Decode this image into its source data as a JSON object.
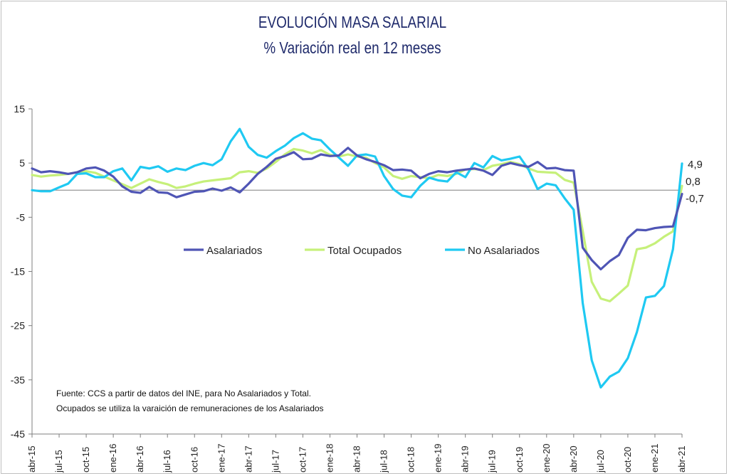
{
  "chart_data": {
    "type": "line",
    "title": "EVOLUCIÓN MASA SALARIAL",
    "subtitle": "% Variación real en 12 meses",
    "ylim": [
      -45,
      15
    ],
    "y_ticks": [
      "15",
      "5",
      "-5",
      "-15",
      "-25",
      "-35",
      "-45"
    ],
    "y_tick_values": [
      15,
      5,
      -5,
      -15,
      -25,
      -35,
      -45
    ],
    "x_tick_labels": [
      "abr-15",
      "jul-15",
      "oct-15",
      "ene-16",
      "abr-16",
      "jul-16",
      "oct-16",
      "ene-17",
      "abr-17",
      "jul-17",
      "oct-17",
      "ene-18",
      "abr-18",
      "jul-18",
      "oct-18",
      "ene-19",
      "abr-19",
      "jul-19",
      "oct-19",
      "ene-20",
      "abr-20",
      "jul-20",
      "oct-20",
      "ene-21",
      "abr-21"
    ],
    "x": [
      "abr-15",
      "may-15",
      "jun-15",
      "jul-15",
      "ago-15",
      "sep-15",
      "oct-15",
      "nov-15",
      "dic-15",
      "ene-16",
      "feb-16",
      "mar-16",
      "abr-16",
      "may-16",
      "jun-16",
      "jul-16",
      "ago-16",
      "sep-16",
      "oct-16",
      "nov-16",
      "dic-16",
      "ene-17",
      "feb-17",
      "mar-17",
      "abr-17",
      "may-17",
      "jun-17",
      "jul-17",
      "ago-17",
      "sep-17",
      "oct-17",
      "nov-17",
      "dic-17",
      "ene-18",
      "feb-18",
      "mar-18",
      "abr-18",
      "may-18",
      "jun-18",
      "jul-18",
      "ago-18",
      "sep-18",
      "oct-18",
      "nov-18",
      "dic-18",
      "ene-19",
      "feb-19",
      "mar-19",
      "abr-19",
      "may-19",
      "jun-19",
      "jul-19",
      "ago-19",
      "sep-19",
      "oct-19",
      "nov-19",
      "dic-19",
      "ene-20",
      "feb-20",
      "mar-20",
      "abr-20",
      "may-20",
      "jun-20",
      "jul-20",
      "ago-20",
      "sep-20",
      "oct-20",
      "nov-20",
      "dic-20",
      "ene-21",
      "feb-21",
      "mar-21",
      "abr-21"
    ],
    "series": [
      {
        "name": "Asalariados",
        "color": "#4f55b5",
        "values": [
          4.0,
          3.3,
          3.5,
          3.3,
          3.0,
          3.3,
          4.0,
          4.2,
          3.6,
          2.5,
          0.7,
          -0.3,
          -0.5,
          0.6,
          -0.4,
          -0.5,
          -1.3,
          -0.8,
          -0.3,
          -0.2,
          0.3,
          -0.1,
          0.5,
          -0.4,
          1.2,
          3.0,
          4.3,
          5.8,
          6.3,
          7.0,
          5.7,
          5.8,
          6.6,
          6.3,
          6.4,
          7.8,
          6.4,
          5.7,
          5.2,
          4.6,
          3.7,
          3.8,
          3.6,
          2.2,
          3.0,
          3.5,
          3.3,
          3.6,
          3.8,
          4.0,
          3.6,
          2.8,
          4.5,
          5.0,
          4.6,
          4.3,
          5.2,
          4.0,
          4.1,
          3.7,
          3.6,
          -10.6,
          -12.9,
          -14.6,
          -13.1,
          -12.0,
          -8.8,
          -7.3,
          -7.4,
          -7.0,
          -6.8,
          -6.7,
          -0.7
        ]
      },
      {
        "name": "Total Ocupados",
        "color": "#c6f07a",
        "values": [
          2.8,
          2.5,
          2.7,
          2.8,
          3.0,
          3.3,
          3.5,
          3.2,
          2.5,
          1.8,
          1.1,
          0.4,
          1.2,
          2.0,
          1.5,
          1.1,
          0.4,
          0.7,
          1.2,
          1.6,
          1.8,
          2.0,
          2.2,
          3.3,
          3.5,
          3.2,
          4.0,
          5.2,
          6.6,
          7.6,
          7.3,
          6.8,
          7.4,
          6.5,
          6.2,
          6.6,
          6.2,
          6.0,
          5.0,
          4.2,
          2.6,
          2.1,
          2.6,
          2.4,
          2.2,
          2.8,
          2.6,
          3.0,
          3.8,
          3.9,
          3.7,
          4.5,
          4.8,
          5.2,
          4.8,
          4.0,
          3.4,
          3.3,
          3.2,
          1.9,
          1.4,
          -7.5,
          -16.9,
          -20.0,
          -20.5,
          -19.1,
          -17.6,
          -10.9,
          -10.6,
          -9.8,
          -8.6,
          -7.6,
          0.8
        ]
      },
      {
        "name": "No Asalariados",
        "color": "#1fc9f2",
        "values": [
          0.0,
          -0.2,
          -0.2,
          0.5,
          1.2,
          3.0,
          3.1,
          2.4,
          2.4,
          3.5,
          4.0,
          1.8,
          4.3,
          4.0,
          4.4,
          3.4,
          4.0,
          3.7,
          4.5,
          5.0,
          4.6,
          5.7,
          9.0,
          11.3,
          8.0,
          6.5,
          6.0,
          7.2,
          8.2,
          9.6,
          10.5,
          9.5,
          9.2,
          7.5,
          6.0,
          4.5,
          6.4,
          6.6,
          6.2,
          2.6,
          0.2,
          -1.0,
          -1.3,
          0.8,
          2.3,
          1.8,
          1.6,
          3.3,
          2.4,
          5.0,
          4.2,
          6.3,
          5.5,
          5.8,
          6.2,
          3.8,
          0.2,
          1.2,
          0.9,
          -1.5,
          -3.6,
          -20.8,
          -31.4,
          -36.4,
          -34.4,
          -33.5,
          -31.0,
          -26.2,
          -19.8,
          -19.5,
          -17.7,
          -10.9,
          4.9
        ]
      }
    ],
    "end_labels": [
      "4,9",
      "0,8",
      "-0,7"
    ],
    "legend_position": "middle",
    "source_note": [
      "Fuente: CCS a partir de datos del INE, para No Asalariados y Total.",
      "Ocupados se utiliza la varaición de remuneraciones de los Asalariados"
    ]
  }
}
